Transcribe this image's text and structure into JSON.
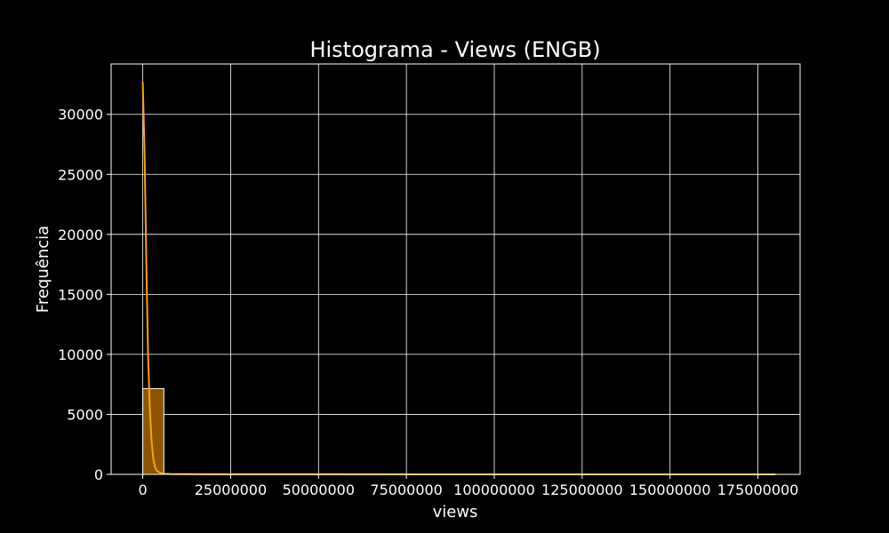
{
  "chart_data": {
    "type": "bar",
    "subtype": "histogram",
    "title": "Histograma - Views (ENGB)",
    "xlabel": "views",
    "ylabel": "Frequência",
    "xlim": [
      -9000000,
      187000000
    ],
    "ylim": [
      0,
      34200
    ],
    "xticks": [
      0,
      25000000,
      50000000,
      75000000,
      100000000,
      125000000,
      150000000,
      175000000
    ],
    "xtick_labels": [
      "0",
      "25000000",
      "50000000",
      "75000000",
      "100000000",
      "125000000",
      "150000000",
      "175000000"
    ],
    "yticks": [
      0,
      5000,
      10000,
      15000,
      20000,
      25000,
      30000
    ],
    "ytick_labels": [
      "0",
      "5000",
      "10000",
      "15000",
      "20000",
      "25000",
      "30000"
    ],
    "grid": true,
    "bins": [
      {
        "start": 0,
        "end": 6000000,
        "count": 7150
      },
      {
        "start": 6000000,
        "end": 12000000,
        "count": 40
      },
      {
        "start": 12000000,
        "end": 18000000,
        "count": 15
      },
      {
        "start": 18000000,
        "end": 24000000,
        "count": 8
      },
      {
        "start": 24000000,
        "end": 30000000,
        "count": 5
      },
      {
        "start": 30000000,
        "end": 36000000,
        "count": 3
      },
      {
        "start": 36000000,
        "end": 42000000,
        "count": 2
      },
      {
        "start": 42000000,
        "end": 48000000,
        "count": 2
      },
      {
        "start": 48000000,
        "end": 54000000,
        "count": 1
      },
      {
        "start": 54000000,
        "end": 60000000,
        "count": 1
      },
      {
        "start": 60000000,
        "end": 66000000,
        "count": 1
      },
      {
        "start": 66000000,
        "end": 72000000,
        "count": 1
      },
      {
        "start": 72000000,
        "end": 78000000,
        "count": 0
      },
      {
        "start": 78000000,
        "end": 84000000,
        "count": 0
      },
      {
        "start": 84000000,
        "end": 90000000,
        "count": 1
      },
      {
        "start": 90000000,
        "end": 96000000,
        "count": 0
      },
      {
        "start": 96000000,
        "end": 102000000,
        "count": 0
      },
      {
        "start": 102000000,
        "end": 108000000,
        "count": 1
      },
      {
        "start": 108000000,
        "end": 114000000,
        "count": 0
      },
      {
        "start": 114000000,
        "end": 120000000,
        "count": 0
      },
      {
        "start": 120000000,
        "end": 126000000,
        "count": 0
      },
      {
        "start": 126000000,
        "end": 132000000,
        "count": 1
      },
      {
        "start": 132000000,
        "end": 138000000,
        "count": 0
      },
      {
        "start": 138000000,
        "end": 144000000,
        "count": 0
      },
      {
        "start": 144000000,
        "end": 150000000,
        "count": 0
      },
      {
        "start": 150000000,
        "end": 156000000,
        "count": 0
      },
      {
        "start": 156000000,
        "end": 162000000,
        "count": 0
      },
      {
        "start": 162000000,
        "end": 168000000,
        "count": 0
      },
      {
        "start": 168000000,
        "end": 174000000,
        "count": 0
      },
      {
        "start": 174000000,
        "end": 180000000,
        "count": 1
      }
    ],
    "kde": {
      "x": [
        0,
        500000,
        1000000,
        1500000,
        2000000,
        2500000,
        3000000,
        3500000,
        4000000,
        5000000,
        6000000,
        8000000,
        10000000,
        15000000,
        20000000,
        40000000,
        80000000,
        120000000,
        178000000,
        180000000
      ],
      "y": [
        32700,
        27000,
        18000,
        10000,
        5500,
        2800,
        1300,
        600,
        300,
        120,
        60,
        30,
        20,
        15,
        10,
        6,
        3,
        2,
        1,
        0
      ]
    },
    "colors": {
      "background": "#000000",
      "bar_fill": "#8a5700",
      "bar_edge": "#ffffff",
      "kde_line": "#ff9f0e",
      "grid": "#ffffff",
      "text": "#ffffff"
    }
  }
}
